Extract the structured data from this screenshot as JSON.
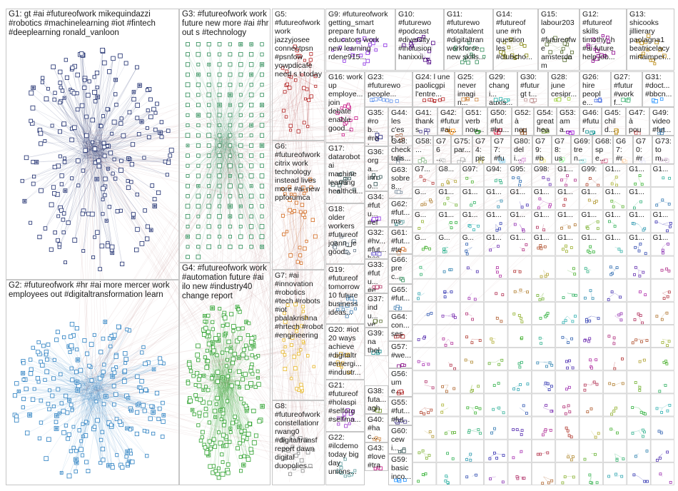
{
  "groups": [
    {
      "id": "G1",
      "text": "G1: gt #ai #futureofwork mikequindazzi\n#robotics #machinelearning #iot #fintech\n#deeplearning ronald_vanloon",
      "color": "#1a2a6c"
    },
    {
      "id": "G2",
      "text": "G2: #futureofwork #hr #ai more mercer work\nemployees out #digitaltransformation learn",
      "color": "#2a7fc1"
    },
    {
      "id": "G3",
      "text": "G3: #futureofwork work\nfuture new more #ai #hr\nout s #technology",
      "color": "#2e8b57"
    },
    {
      "id": "G4",
      "text": "G4: #futureofwork work\n#automation future #ai\nilo new #industry40\nchange report",
      "color": "#2ca02c"
    },
    {
      "id": "G5",
      "text": "G5:\n#futureofwork\nwork\njazzyjosee\nconnectpsn\n#psnfow\nyowpdicafe\nneed s t today",
      "color": "#b22222"
    },
    {
      "id": "G6",
      "text": "G6:\n#futureofwork\ncitrix work\ntechnology\ninstead lives\nmore #ai new\nppforumca",
      "color": "#d2691e"
    },
    {
      "id": "G7",
      "text": "G7: #ai\n#innovation\n#robotics\n#tech #robots\n#iot\npbalakrishna\n#hrtech #robot\n#engineering",
      "color": "#e6b422"
    },
    {
      "id": "G8",
      "text": "G8:\n#futureofwork\nconstellationr\nrwang0\n#digitaltransf\nreport dawn\ndigital\nduopolies...",
      "color": "#888888"
    },
    {
      "id": "G9",
      "text": "G9: #futureofwork\ngetting_smart\nprepare future\neducators work\nnew learning\nrdene915...",
      "color": "#8a2be2"
    },
    {
      "id": "G10",
      "text": "G10:\n#futurewo\n#podcast\n#diversity\n#inclusion\nhanixxii...",
      "color": "#4b0082"
    },
    {
      "id": "G11",
      "text": "G11:\n#futurewo\n#totaltalent\n#digitaltran\nworkforce\nnew skills...",
      "color": "#2e8b57"
    },
    {
      "id": "G14",
      "text": "G14:\n#futureof\nune #rh\nquestion\nles\n#clubcho...",
      "color": "#808000"
    },
    {
      "id": "G15",
      "text": "G15:\nlabour2030\n#futureofw\ne\namsterdam\nresearch...",
      "color": "#556b2f"
    },
    {
      "id": "G12",
      "text": "G12:\n#futureof\nskills\ntimothy_h\n#ai future\nhelp job...",
      "color": "#8b008b"
    },
    {
      "id": "G13",
      "text": "G13:\nshicooks\njillierary\npaolagna1\nbeatricelacy\nmirtaimper...",
      "color": "#b8860b"
    },
    {
      "id": "G16",
      "text": "G16: work\nup\nemploye...\njoin\ndebate\nenable\ngood...",
      "color": "#c71585"
    },
    {
      "id": "G17",
      "text": "G17:\ndatarobot\nai\nmachine\nlearning\nhealthca...",
      "color": "#2f4f4f"
    },
    {
      "id": "G18",
      "text": "G18:\nolder\nworkers\n#futureof\njoann_je\ngood...",
      "color": "#708090"
    },
    {
      "id": "G19",
      "text": "G19:\n#futureof\ntomorrow\n10 future\nbusiness\nideas...",
      "color": "#4682b4"
    },
    {
      "id": "G20",
      "text": "G20: #iot\n20 ways\nachieve\n#digitaltr\n#emergi...\n#industr...",
      "color": "#daa520"
    },
    {
      "id": "G21",
      "text": "G21:\n#futureof\n#holaspi\n#selforg\n#selfma...",
      "color": "#9932cc"
    },
    {
      "id": "G22",
      "text": "G22:\n#ilcdemo\ntoday big\nday\nunions...",
      "color": "#5f9ea0"
    },
    {
      "id": "G23",
      "text": "G23:\n#futurewo\npeople...",
      "color": "#6495ed"
    },
    {
      "id": "G24",
      "text": "G24: l une\npaolicgpi\nl'entre...",
      "color": "#b22222"
    },
    {
      "id": "G25",
      "text": "G25:\nnever\nimagin...",
      "color": "#cd853f"
    },
    {
      "id": "G29",
      "text": "G29:\nchangi...\nauxis...",
      "color": "#20b2aa"
    },
    {
      "id": "G30",
      "text": "G30:\n#futur\ngt t...",
      "color": "#bc8f8f"
    },
    {
      "id": "G28",
      "text": "G28:\njune\ncesipr...",
      "color": "#9acd32"
    },
    {
      "id": "G26",
      "text": "G26:\nhire\npeople...",
      "color": "#4169e1"
    },
    {
      "id": "G27",
      "text": "G27:\n#futur\n#workf...",
      "color": "#3cb371"
    },
    {
      "id": "G31",
      "text": "G31:\n#doct...\n#bbcn...",
      "color": "#1e90ff"
    },
    {
      "id": "G35",
      "text": "G35:\n#rob...\n#rob...\nrobot...",
      "color": "#191970"
    },
    {
      "id": "G44",
      "text": "G44:\nles\nc'est...",
      "color": "#a0522d"
    },
    {
      "id": "G41",
      "text": "G41:\nthanks\n#iot...",
      "color": "#483d8b"
    },
    {
      "id": "G42",
      "text": "G42:\n#futur\n#ai...",
      "color": "#ff8c00"
    },
    {
      "id": "G51",
      "text": "G51:\nverb\nnou...",
      "color": "#228b22"
    },
    {
      "id": "G50",
      "text": "G50:\n#fut\n#bu...",
      "color": "#dc143c"
    },
    {
      "id": "G52",
      "text": "G52:\nà\nnous...",
      "color": "#8b4513"
    },
    {
      "id": "G54",
      "text": "G54:\ngreat\nhear...",
      "color": "#6b8e23"
    },
    {
      "id": "G53",
      "text": "G53:\nama...\nstor...",
      "color": "#9400d3"
    },
    {
      "id": "G46",
      "text": "G46:\n#futur\nnev...",
      "color": "#008b8b"
    },
    {
      "id": "G45",
      "text": "G45:\nchild...\nnaba...",
      "color": "#b8860b"
    },
    {
      "id": "G47",
      "text": "G47:\nà\npour...",
      "color": "#cd5c5c"
    },
    {
      "id": "G49",
      "text": "G49:\nvideo\n#fut...",
      "color": "#4682b4"
    },
    {
      "id": "G36",
      "text": "G36:\norga...\ninno...\neffort...",
      "color": "#2f4f4f"
    },
    {
      "id": "G48",
      "text": "G48:\nchecktalis...\nout...",
      "color": "#708090"
    },
    {
      "id": "G58",
      "text": "G58:\n...",
      "color": "#8fbc8f"
    },
    {
      "id": "G76",
      "text": "G76\n...",
      "color": "#c0c0c0"
    },
    {
      "id": "G75",
      "text": "G75:\npar...",
      "color": "#a9a9a9"
    },
    {
      "id": "G74",
      "text": "G74:\npick...",
      "color": "#bdb76b"
    },
    {
      "id": "G77",
      "text": "G77:\n#fut...",
      "color": "#87ceeb"
    },
    {
      "id": "G80",
      "text": "G80:\ndeli...",
      "color": "#dda0dd"
    },
    {
      "id": "G79",
      "text": "G79:\n#ba...",
      "color": "#f0e68c"
    },
    {
      "id": "G78",
      "text": "G78:\nusi...",
      "color": "#98fb98"
    },
    {
      "id": "G69",
      "text": "G69:\ntren...",
      "color": "#afeeee"
    },
    {
      "id": "G68",
      "text": "G68:\nspe...",
      "color": "#db7093"
    },
    {
      "id": "G67",
      "text": "G67:\n#re...",
      "color": "#ffdab9"
    },
    {
      "id": "G70",
      "text": "G70:\n#re...",
      "color": "#e6e6fa"
    },
    {
      "id": "G73",
      "text": "G73:\ntom...",
      "color": "#d8bfd8"
    },
    {
      "id": "G63",
      "text": "G63:\nsobre\n8...",
      "color": "#778899"
    },
    {
      "id": "G34",
      "text": "G34:\n#futu...\n#efa...\ndisc...",
      "color": "#8a2be2"
    },
    {
      "id": "G62",
      "text": "G62:\n#fut...\nmsa...",
      "color": "#5f9ea0"
    },
    {
      "id": "G61",
      "text": "G61:\n#fut...\n#tea...",
      "color": "#d2691e"
    },
    {
      "id": "G32",
      "text": "G32:\n#hv...\n#fut...\nbes...",
      "color": "#6a5acd"
    },
    {
      "id": "G66",
      "text": "G66:\nprec...\ns...",
      "color": "#2e8b57"
    },
    {
      "id": "G33",
      "text": "G33:\n#futu...\n#em...\nwork...",
      "color": "#b03060"
    },
    {
      "id": "G65",
      "text": "G65:\n#fut...",
      "color": "#4682b4"
    },
    {
      "id": "G37",
      "text": "G37:\nindu...\nve...\nth...",
      "color": "#556b2f"
    },
    {
      "id": "G64",
      "text": "G64:\ncon...\nsess...",
      "color": "#a52a2a"
    },
    {
      "id": "G39",
      "text": "G39:\nna\nthela...",
      "color": "#008080"
    },
    {
      "id": "G57",
      "text": "G57:\n#we...",
      "color": "#800080"
    },
    {
      "id": "G56",
      "text": "G56:\nume...\n#dig...",
      "color": "#b22222"
    },
    {
      "id": "G38",
      "text": "G38:\nfuta...\naghi...",
      "color": "#6b8e23"
    },
    {
      "id": "G55",
      "text": "G55:\n#fut...\n#fut...",
      "color": "#483d8b"
    },
    {
      "id": "G40",
      "text": "G40:\n#hac...\nimsr...",
      "color": "#cd853f"
    },
    {
      "id": "G60",
      "text": "G60:\ncewi...\nsee...",
      "color": "#2f4f4f"
    },
    {
      "id": "G43",
      "text": "G43:\n#love\n#trav...",
      "color": "#c71585"
    },
    {
      "id": "G59",
      "text": "G59:\nbasic\ninco...",
      "color": "#1e90ff"
    }
  ],
  "grid_rows": [
    [
      "G7...",
      "G8...",
      "G97:",
      "G94:",
      "G95:",
      "G98:",
      "G1...",
      "G99:",
      "G1...",
      "G1...",
      "G1..."
    ],
    [
      "G...",
      "G1...",
      "G1...",
      "G1...",
      "G1...",
      "G1...",
      "G1...",
      "G1...",
      "G1...",
      "G1..."
    ],
    [
      "G...",
      "G1...",
      "G1...",
      "G1...",
      "G1...",
      "G1...",
      "G1...",
      "G1...",
      "G1...",
      "G1...",
      "G1..."
    ],
    [
      "G...",
      "G...",
      "G...",
      "G1...",
      "G1...",
      "G1...",
      "G1...",
      "G1...",
      "G1...",
      "G1...",
      "G1..."
    ]
  ]
}
